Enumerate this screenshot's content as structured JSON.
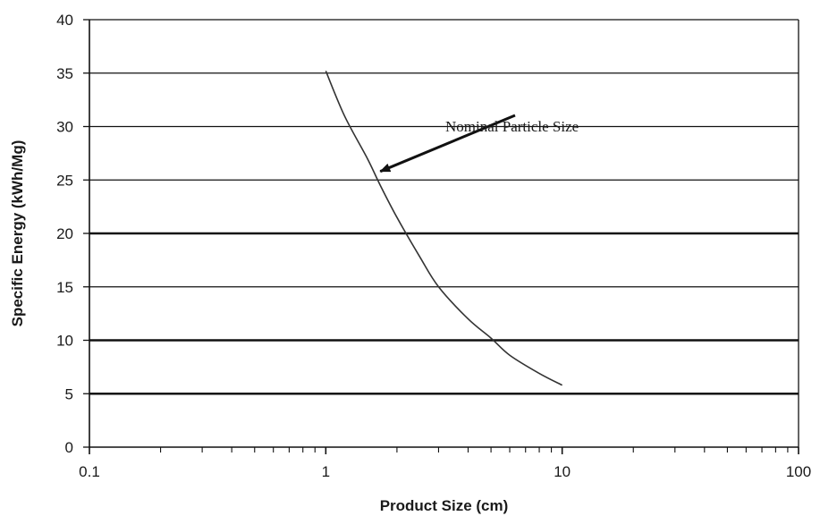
{
  "chart_data": {
    "type": "line",
    "title": "",
    "xlabel": "Product Size (cm)",
    "ylabel": "Specific Energy (kWh/Mg)",
    "x_scale": "log",
    "xlim": [
      0.1,
      100
    ],
    "ylim": [
      0,
      40
    ],
    "x_ticks": [
      "0.1",
      "1",
      "10",
      "100"
    ],
    "y_ticks": [
      "0",
      "5",
      "10",
      "15",
      "20",
      "25",
      "30",
      "35",
      "40"
    ],
    "grid": "horizontal",
    "legend": "none",
    "series": [
      {
        "color": "#333333",
        "x": [
          1.0,
          1.2,
          1.5,
          1.7,
          2.0,
          2.5,
          3.0,
          4.0,
          5.0,
          6.0,
          8.0,
          10.0
        ],
        "y": [
          35.2,
          31.0,
          27.0,
          24.5,
          21.5,
          17.8,
          15.0,
          12.0,
          10.2,
          8.6,
          6.9,
          5.8
        ]
      }
    ],
    "annotations": [
      {
        "text": "Nominal Particle Size",
        "arrow_to": {
          "x": 1.7,
          "y": 25.8
        }
      }
    ]
  }
}
